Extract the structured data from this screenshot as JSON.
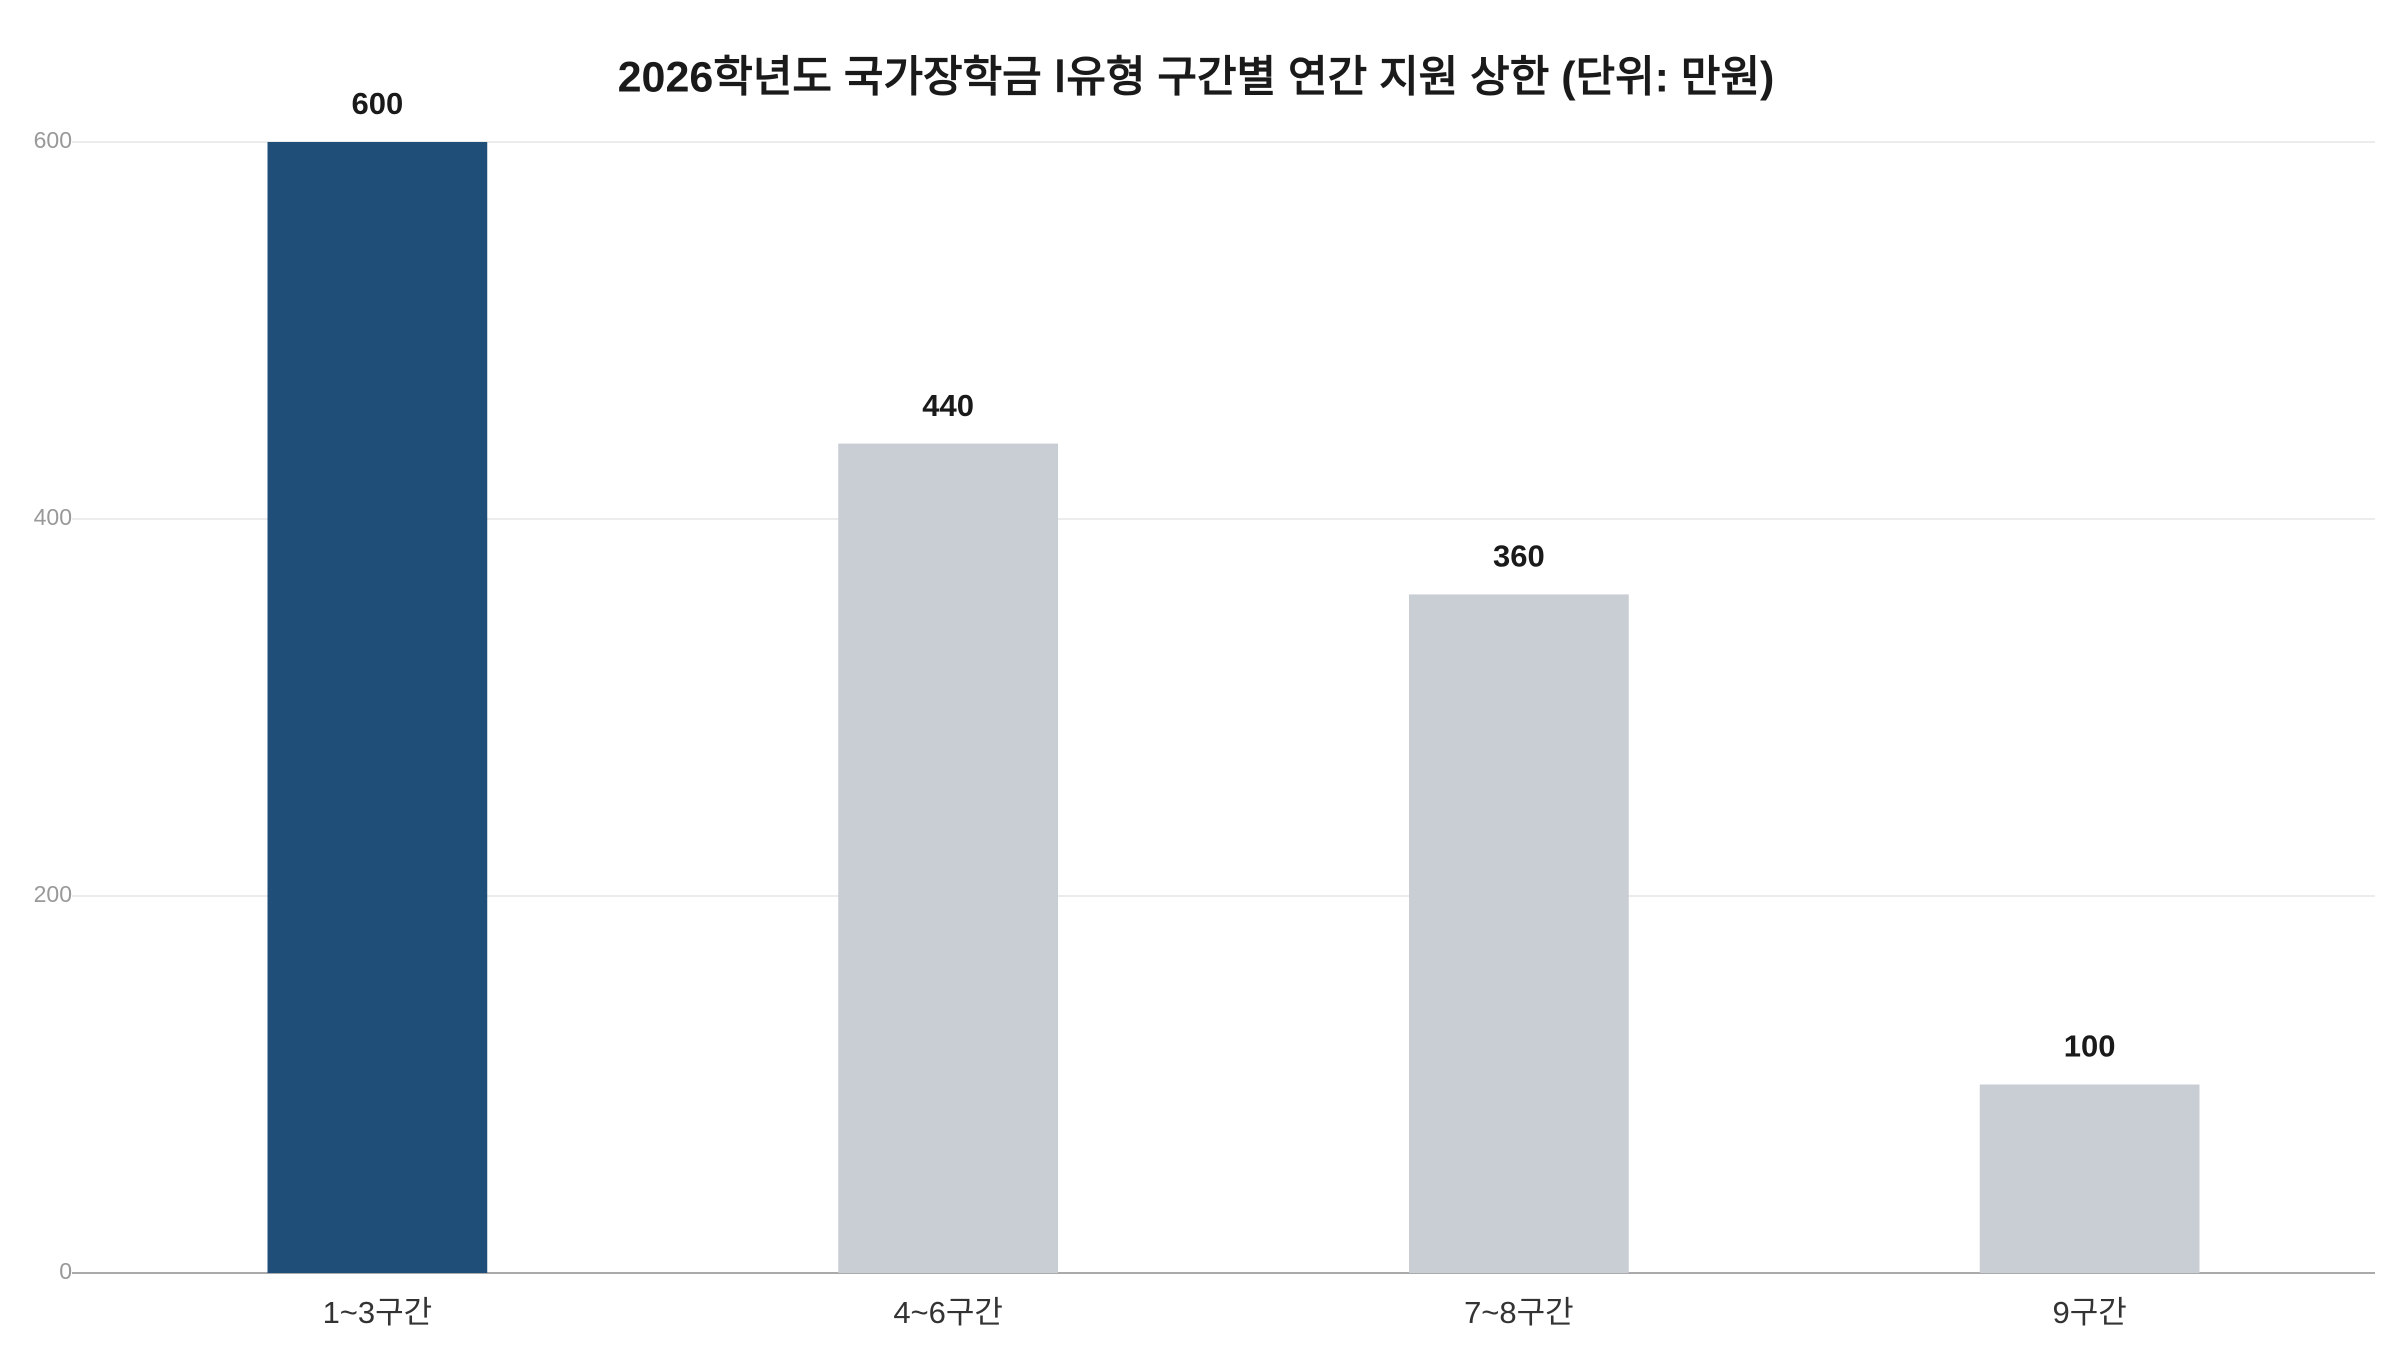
{
  "chart_data": {
    "type": "bar",
    "title": "2026학년도 국가장학금 Ⅰ유형 구간별 연간 지원 상한 (단위: 만원)",
    "categories": [
      "1~3구간",
      "4~6구간",
      "7~8구간",
      "9구간"
    ],
    "values": [
      600,
      440,
      360,
      100
    ],
    "colors": [
      "#1f4e79",
      "#c9cdd4",
      "#c9cdd4",
      "#c9cdd4"
    ],
    "ylim": [
      0,
      600
    ],
    "yticks": [
      0,
      200,
      400,
      600
    ],
    "grid": true
  }
}
